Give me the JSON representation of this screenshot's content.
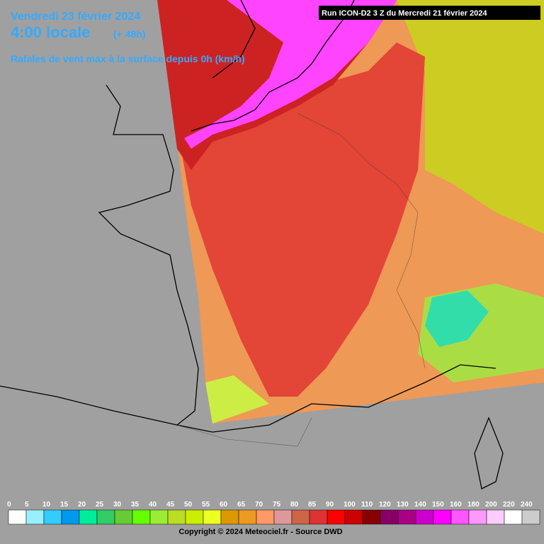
{
  "header": {
    "date": "Vendredi 23 février 2024",
    "time": "4:00 locale",
    "lead": "(+ 48h)",
    "subtitle": "Rafales de vent max à la surface depuis 0h (km/h)",
    "run": "Run ICON-D2 3 Z du Mercredi 21 février 2024"
  },
  "legend": {
    "items": [
      {
        "value": 0,
        "color": "#ffffff"
      },
      {
        "value": 5,
        "color": "#99eeff"
      },
      {
        "value": 10,
        "color": "#33ccff"
      },
      {
        "value": 15,
        "color": "#0099ee"
      },
      {
        "value": 20,
        "color": "#00ee99"
      },
      {
        "value": 25,
        "color": "#33cc66"
      },
      {
        "value": 30,
        "color": "#66cc33"
      },
      {
        "value": 35,
        "color": "#66ff00"
      },
      {
        "value": 40,
        "color": "#99ee33"
      },
      {
        "value": 45,
        "color": "#bbdd22"
      },
      {
        "value": 50,
        "color": "#ccee00"
      },
      {
        "value": 55,
        "color": "#eeff22"
      },
      {
        "value": 60,
        "color": "#dd9900"
      },
      {
        "value": 65,
        "color": "#ee9922"
      },
      {
        "value": 70,
        "color": "#ff9966"
      },
      {
        "value": 75,
        "color": "#dd9999"
      },
      {
        "value": 80,
        "color": "#cc6644"
      },
      {
        "value": 85,
        "color": "#dd3333"
      },
      {
        "value": 90,
        "color": "#ff0000"
      },
      {
        "value": 100,
        "color": "#cc0000"
      },
      {
        "value": 110,
        "color": "#880000"
      },
      {
        "value": 120,
        "color": "#880066"
      },
      {
        "value": 130,
        "color": "#aa0088"
      },
      {
        "value": 140,
        "color": "#cc00cc"
      },
      {
        "value": 150,
        "color": "#ff00ff"
      },
      {
        "value": 160,
        "color": "#ff55ff"
      },
      {
        "value": 180,
        "color": "#ff99ff"
      },
      {
        "value": 200,
        "color": "#ffccff"
      },
      {
        "value": 220,
        "color": "#ffffff"
      },
      {
        "value": 240,
        "color": "#cccccc"
      }
    ]
  },
  "footer": {
    "copyright": "Copyright © 2024 Meteociel.fr - Source DWD"
  }
}
